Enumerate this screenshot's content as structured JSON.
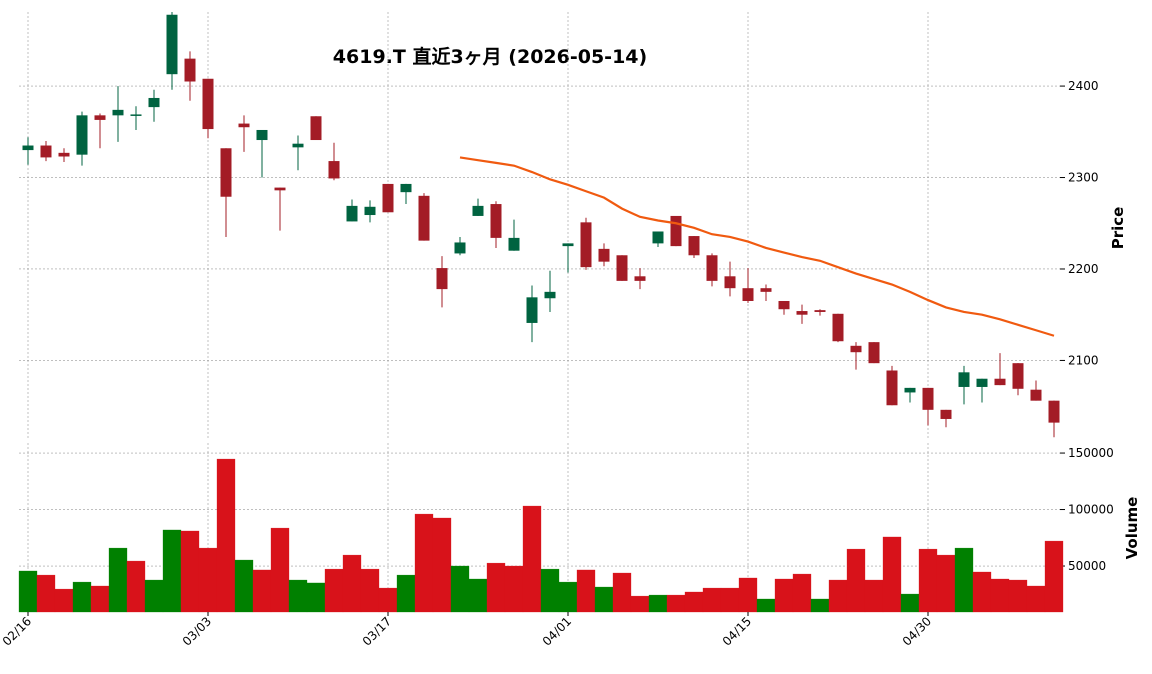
{
  "chart_data": [
    {
      "type": "candlestick",
      "title": "4619.T  直近3ヶ月  (2026-05-14)",
      "ylabel": "Price",
      "up_color": "#006340",
      "down_color": "#a31c26",
      "open": [
        2330,
        2335,
        2327,
        2325,
        2368,
        2368,
        2368,
        2377,
        2413,
        2430,
        2408,
        2332,
        2359,
        2341,
        2289,
        2333,
        2367,
        2318,
        2252,
        2259,
        2293,
        2284,
        2280,
        2201,
        2217,
        2258,
        2271,
        2220,
        2141,
        2168,
        2225,
        2251,
        2222,
        2215,
        2192,
        2228,
        2258,
        2236,
        2215,
        2192,
        2179,
        2179,
        2165,
        2154,
        2155,
        2151,
        2116,
        2120,
        2089,
        2065,
        2070,
        2046,
        2071,
        2071,
        2080,
        2097,
        2068,
        2056
      ],
      "high": [
        2344,
        2340,
        2332,
        2372,
        2370,
        2400,
        2378,
        2396,
        2490,
        2438,
        2408,
        2332,
        2368,
        2352,
        2289,
        2346,
        2367,
        2338,
        2276,
        2275,
        2293,
        2293,
        2283,
        2214,
        2235,
        2277,
        2274,
        2254,
        2182,
        2198,
        2228,
        2256,
        2228,
        2215,
        2201,
        2241,
        2258,
        2236,
        2217,
        2208,
        2201,
        2183,
        2165,
        2161,
        2156,
        2151,
        2120,
        2120,
        2094,
        2070,
        2070,
        2046,
        2094,
        2080,
        2108,
        2097,
        2078,
        2056
      ],
      "low": [
        2314,
        2318,
        2317,
        2313,
        2332,
        2339,
        2352,
        2361,
        2396,
        2384,
        2343,
        2235,
        2328,
        2300,
        2242,
        2308,
        2341,
        2297,
        2252,
        2251,
        2262,
        2271,
        2231,
        2158,
        2215,
        2258,
        2223,
        2220,
        2120,
        2153,
        2196,
        2199,
        2203,
        2187,
        2178,
        2224,
        2225,
        2212,
        2181,
        2170,
        2163,
        2165,
        2150,
        2140,
        2149,
        2120,
        2090,
        2097,
        2051,
        2054,
        2029,
        2027,
        2052,
        2054,
        2073,
        2062,
        2056,
        2016
      ],
      "close": [
        2335,
        2322,
        2323,
        2368,
        2363,
        2374,
        2369,
        2387,
        2478,
        2405,
        2353,
        2279,
        2355,
        2352,
        2286,
        2337,
        2341,
        2299,
        2269,
        2268,
        2262,
        2293,
        2231,
        2178,
        2229,
        2269,
        2234,
        2234,
        2169,
        2175,
        2228,
        2202,
        2208,
        2187,
        2187,
        2241,
        2225,
        2215,
        2187,
        2179,
        2165,
        2175,
        2156,
        2150,
        2153,
        2121,
        2109,
        2097,
        2051,
        2070,
        2046,
        2036,
        2087,
        2080,
        2073,
        2069,
        2056,
        2032
      ],
      "series": [
        {
          "color": "#f05a10",
          "values": [
            null,
            null,
            null,
            null,
            null,
            null,
            null,
            null,
            null,
            null,
            null,
            null,
            null,
            null,
            null,
            null,
            null,
            null,
            null,
            null,
            null,
            null,
            null,
            null,
            2322,
            2319,
            2316,
            2313,
            2306,
            2298,
            2292,
            2285,
            2278,
            2266,
            2257,
            2253,
            2250,
            2245,
            2238,
            2235,
            2230,
            2223,
            2218,
            2213,
            2209,
            2202,
            2195,
            2189,
            2183,
            2175,
            2166,
            2158,
            2153,
            2150,
            2145,
            2139,
            2133,
            2127
          ]
        }
      ],
      "ylim": [
        2013,
        2481
      ],
      "yticks": [
        2100,
        2200,
        2300,
        2400
      ],
      "grid": true
    },
    {
      "type": "bar",
      "ylabel": "Volume",
      "categories": [
        "02/16",
        null,
        null,
        null,
        null,
        null,
        null,
        null,
        null,
        null,
        "03/03",
        null,
        null,
        null,
        null,
        null,
        null,
        null,
        null,
        null,
        "03/17",
        null,
        null,
        null,
        null,
        null,
        null,
        null,
        null,
        null,
        "04/01",
        null,
        null,
        null,
        null,
        null,
        null,
        null,
        null,
        null,
        "04/15",
        null,
        null,
        null,
        null,
        null,
        null,
        null,
        null,
        null,
        "04/30",
        null,
        null,
        null,
        null,
        null,
        null,
        null
      ],
      "values": [
        45600,
        42000,
        29600,
        35800,
        32300,
        65900,
        54400,
        37600,
        81900,
        81000,
        65900,
        144700,
        55300,
        46500,
        83600,
        37600,
        35000,
        47300,
        59700,
        47300,
        30500,
        42000,
        96000,
        92500,
        50000,
        38500,
        52600,
        50000,
        103100,
        47300,
        35800,
        46500,
        31400,
        43800,
        23400,
        24300,
        24300,
        27000,
        30500,
        30500,
        39400,
        20800,
        38500,
        42900,
        20800,
        37600,
        65000,
        37600,
        75700,
        25200,
        65000,
        59700,
        65900,
        44700,
        38500,
        37600,
        32300,
        72100
      ],
      "colors": [
        "#008000",
        "#d8121a",
        "#d8121a",
        "#008000",
        "#d8121a",
        "#008000",
        "#d8121a",
        "#008000",
        "#008000",
        "#d8121a",
        "#d8121a",
        "#d8121a",
        "#008000",
        "#d8121a",
        "#d8121a",
        "#008000",
        "#008000",
        "#d8121a",
        "#d8121a",
        "#d8121a",
        "#d8121a",
        "#008000",
        "#d8121a",
        "#d8121a",
        "#008000",
        "#008000",
        "#d8121a",
        "#d8121a",
        "#d8121a",
        "#008000",
        "#008000",
        "#d8121a",
        "#008000",
        "#d8121a",
        "#d8121a",
        "#008000",
        "#d8121a",
        "#d8121a",
        "#d8121a",
        "#d8121a",
        "#d8121a",
        "#008000",
        "#d8121a",
        "#d8121a",
        "#008000",
        "#d8121a",
        "#d8121a",
        "#d8121a",
        "#d8121a",
        "#008000",
        "#d8121a",
        "#d8121a",
        "#008000",
        "#d8121a",
        "#d8121a",
        "#d8121a",
        "#d8121a",
        "#d8121a"
      ],
      "ylim": [
        9300,
        158900
      ],
      "yticks": [
        50000,
        100000,
        150000
      ],
      "grid": true
    }
  ]
}
